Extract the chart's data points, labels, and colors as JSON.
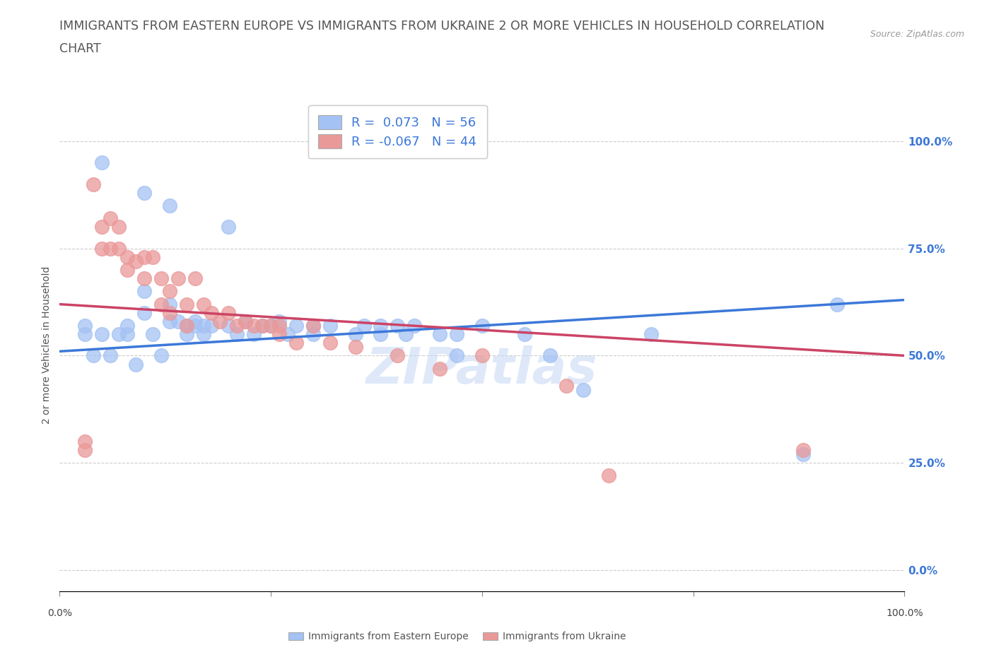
{
  "title_line1": "IMMIGRANTS FROM EASTERN EUROPE VS IMMIGRANTS FROM UKRAINE 2 OR MORE VEHICLES IN HOUSEHOLD CORRELATION",
  "title_line2": "CHART",
  "source": "Source: ZipAtlas.com",
  "ylabel": "2 or more Vehicles in Household",
  "ytick_values": [
    0,
    25,
    50,
    75,
    100
  ],
  "xlim": [
    0,
    100
  ],
  "ylim": [
    -5,
    110
  ],
  "legend_blue_r": "R =  0.073",
  "legend_blue_n": "N = 56",
  "legend_pink_r": "R = -0.067",
  "legend_pink_n": "N = 44",
  "blue_color": "#a4c2f4",
  "pink_color": "#ea9999",
  "line_blue_color": "#3c78d8",
  "line_pink_color": "#cc4466",
  "watermark": "ZIPatlas",
  "watermark_color": "#c8daf5",
  "background_color": "#ffffff",
  "title_fontsize": 12.5,
  "axis_label_fontsize": 10,
  "legend_fontsize": 13,
  "blue_scatter_x": [
    5,
    10,
    13,
    20,
    3,
    7,
    10,
    13,
    3,
    5,
    8,
    8,
    10,
    11,
    13,
    14,
    15,
    15,
    16,
    16,
    17,
    17,
    18,
    20,
    21,
    22,
    23,
    24,
    25,
    26,
    27,
    28,
    30,
    30,
    32,
    35,
    36,
    38,
    38,
    40,
    41,
    42,
    45,
    47,
    47,
    50,
    55,
    58,
    62,
    70,
    88,
    92,
    4,
    6,
    9,
    12
  ],
  "blue_scatter_y": [
    95,
    88,
    85,
    80,
    57,
    55,
    65,
    62,
    55,
    55,
    57,
    55,
    60,
    55,
    58,
    58,
    57,
    55,
    58,
    57,
    57,
    55,
    57,
    57,
    55,
    58,
    55,
    57,
    57,
    58,
    55,
    57,
    57,
    55,
    57,
    55,
    57,
    57,
    55,
    57,
    55,
    57,
    55,
    50,
    55,
    57,
    55,
    50,
    42,
    55,
    27,
    62,
    50,
    50,
    48,
    50
  ],
  "pink_scatter_x": [
    3,
    3,
    4,
    5,
    5,
    6,
    6,
    7,
    7,
    8,
    8,
    9,
    10,
    10,
    11,
    12,
    12,
    13,
    13,
    14,
    15,
    15,
    16,
    17,
    18,
    19,
    20,
    21,
    22,
    23,
    24,
    25,
    26,
    26,
    28,
    30,
    32,
    35,
    40,
    45,
    50,
    60,
    65,
    88
  ],
  "pink_scatter_y": [
    30,
    28,
    90,
    80,
    75,
    82,
    75,
    80,
    75,
    73,
    70,
    72,
    73,
    68,
    73,
    68,
    62,
    65,
    60,
    68,
    62,
    57,
    68,
    62,
    60,
    58,
    60,
    57,
    58,
    57,
    57,
    57,
    57,
    55,
    53,
    57,
    53,
    52,
    50,
    47,
    50,
    43,
    22,
    28
  ],
  "blue_line_y_start": 51,
  "blue_line_y_end": 63,
  "pink_line_y_start": 62,
  "pink_line_y_end": 50
}
